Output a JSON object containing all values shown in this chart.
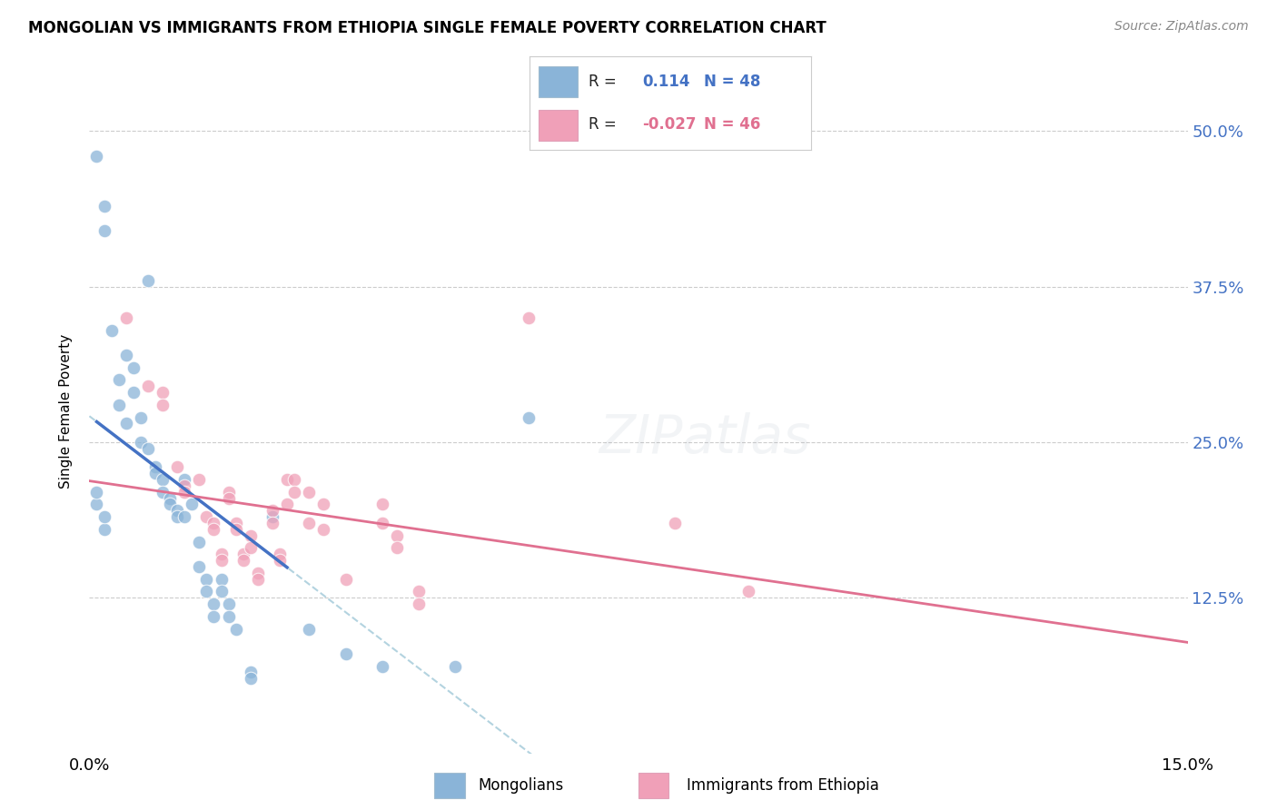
{
  "title": "MONGOLIAN VS IMMIGRANTS FROM ETHIOPIA SINGLE FEMALE POVERTY CORRELATION CHART",
  "source": "Source: ZipAtlas.com",
  "ylabel": "Single Female Poverty",
  "ytick_labels": [
    "50.0%",
    "37.5%",
    "25.0%",
    "12.5%"
  ],
  "ytick_values": [
    0.5,
    0.375,
    0.25,
    0.125
  ],
  "xlim": [
    0.0,
    0.15
  ],
  "ylim": [
    0.0,
    0.55
  ],
  "background_color": "#ffffff",
  "grid_color": "#cccccc",
  "mongolian_color": "#8ab4d8",
  "ethiopia_color": "#f0a0b8",
  "mongolian_line_color": "#4472c4",
  "ethiopia_line_color": "#e07090",
  "mongolian_trend_dashed_color": "#a0c8d8",
  "mongolian_points": [
    [
      0.001,
      0.48
    ],
    [
      0.002,
      0.44
    ],
    [
      0.002,
      0.42
    ],
    [
      0.003,
      0.34
    ],
    [
      0.004,
      0.3
    ],
    [
      0.004,
      0.28
    ],
    [
      0.005,
      0.32
    ],
    [
      0.005,
      0.265
    ],
    [
      0.006,
      0.31
    ],
    [
      0.006,
      0.29
    ],
    [
      0.007,
      0.27
    ],
    [
      0.007,
      0.25
    ],
    [
      0.008,
      0.245
    ],
    [
      0.008,
      0.38
    ],
    [
      0.009,
      0.23
    ],
    [
      0.009,
      0.225
    ],
    [
      0.01,
      0.22
    ],
    [
      0.01,
      0.21
    ],
    [
      0.011,
      0.205
    ],
    [
      0.011,
      0.2
    ],
    [
      0.012,
      0.195
    ],
    [
      0.012,
      0.19
    ],
    [
      0.013,
      0.22
    ],
    [
      0.013,
      0.19
    ],
    [
      0.014,
      0.2
    ],
    [
      0.015,
      0.17
    ],
    [
      0.015,
      0.15
    ],
    [
      0.016,
      0.14
    ],
    [
      0.016,
      0.13
    ],
    [
      0.017,
      0.12
    ],
    [
      0.017,
      0.11
    ],
    [
      0.018,
      0.14
    ],
    [
      0.018,
      0.13
    ],
    [
      0.019,
      0.12
    ],
    [
      0.019,
      0.11
    ],
    [
      0.02,
      0.1
    ],
    [
      0.022,
      0.065
    ],
    [
      0.022,
      0.06
    ],
    [
      0.025,
      0.19
    ],
    [
      0.03,
      0.1
    ],
    [
      0.035,
      0.08
    ],
    [
      0.04,
      0.07
    ],
    [
      0.05,
      0.07
    ],
    [
      0.06,
      0.27
    ],
    [
      0.001,
      0.2
    ],
    [
      0.001,
      0.21
    ],
    [
      0.002,
      0.18
    ],
    [
      0.002,
      0.19
    ]
  ],
  "ethiopia_points": [
    [
      0.005,
      0.35
    ],
    [
      0.008,
      0.295
    ],
    [
      0.01,
      0.29
    ],
    [
      0.01,
      0.28
    ],
    [
      0.012,
      0.23
    ],
    [
      0.013,
      0.215
    ],
    [
      0.013,
      0.21
    ],
    [
      0.015,
      0.22
    ],
    [
      0.016,
      0.19
    ],
    [
      0.017,
      0.185
    ],
    [
      0.017,
      0.18
    ],
    [
      0.018,
      0.16
    ],
    [
      0.018,
      0.155
    ],
    [
      0.019,
      0.21
    ],
    [
      0.019,
      0.205
    ],
    [
      0.02,
      0.185
    ],
    [
      0.02,
      0.18
    ],
    [
      0.021,
      0.16
    ],
    [
      0.021,
      0.155
    ],
    [
      0.022,
      0.175
    ],
    [
      0.022,
      0.165
    ],
    [
      0.023,
      0.145
    ],
    [
      0.023,
      0.14
    ],
    [
      0.025,
      0.195
    ],
    [
      0.025,
      0.185
    ],
    [
      0.026,
      0.16
    ],
    [
      0.026,
      0.155
    ],
    [
      0.027,
      0.22
    ],
    [
      0.027,
      0.2
    ],
    [
      0.028,
      0.22
    ],
    [
      0.028,
      0.21
    ],
    [
      0.03,
      0.21
    ],
    [
      0.03,
      0.185
    ],
    [
      0.032,
      0.2
    ],
    [
      0.032,
      0.18
    ],
    [
      0.035,
      0.14
    ],
    [
      0.04,
      0.2
    ],
    [
      0.04,
      0.185
    ],
    [
      0.042,
      0.175
    ],
    [
      0.042,
      0.165
    ],
    [
      0.045,
      0.13
    ],
    [
      0.045,
      0.12
    ],
    [
      0.06,
      0.35
    ],
    [
      0.08,
      0.185
    ],
    [
      0.09,
      0.13
    ]
  ]
}
